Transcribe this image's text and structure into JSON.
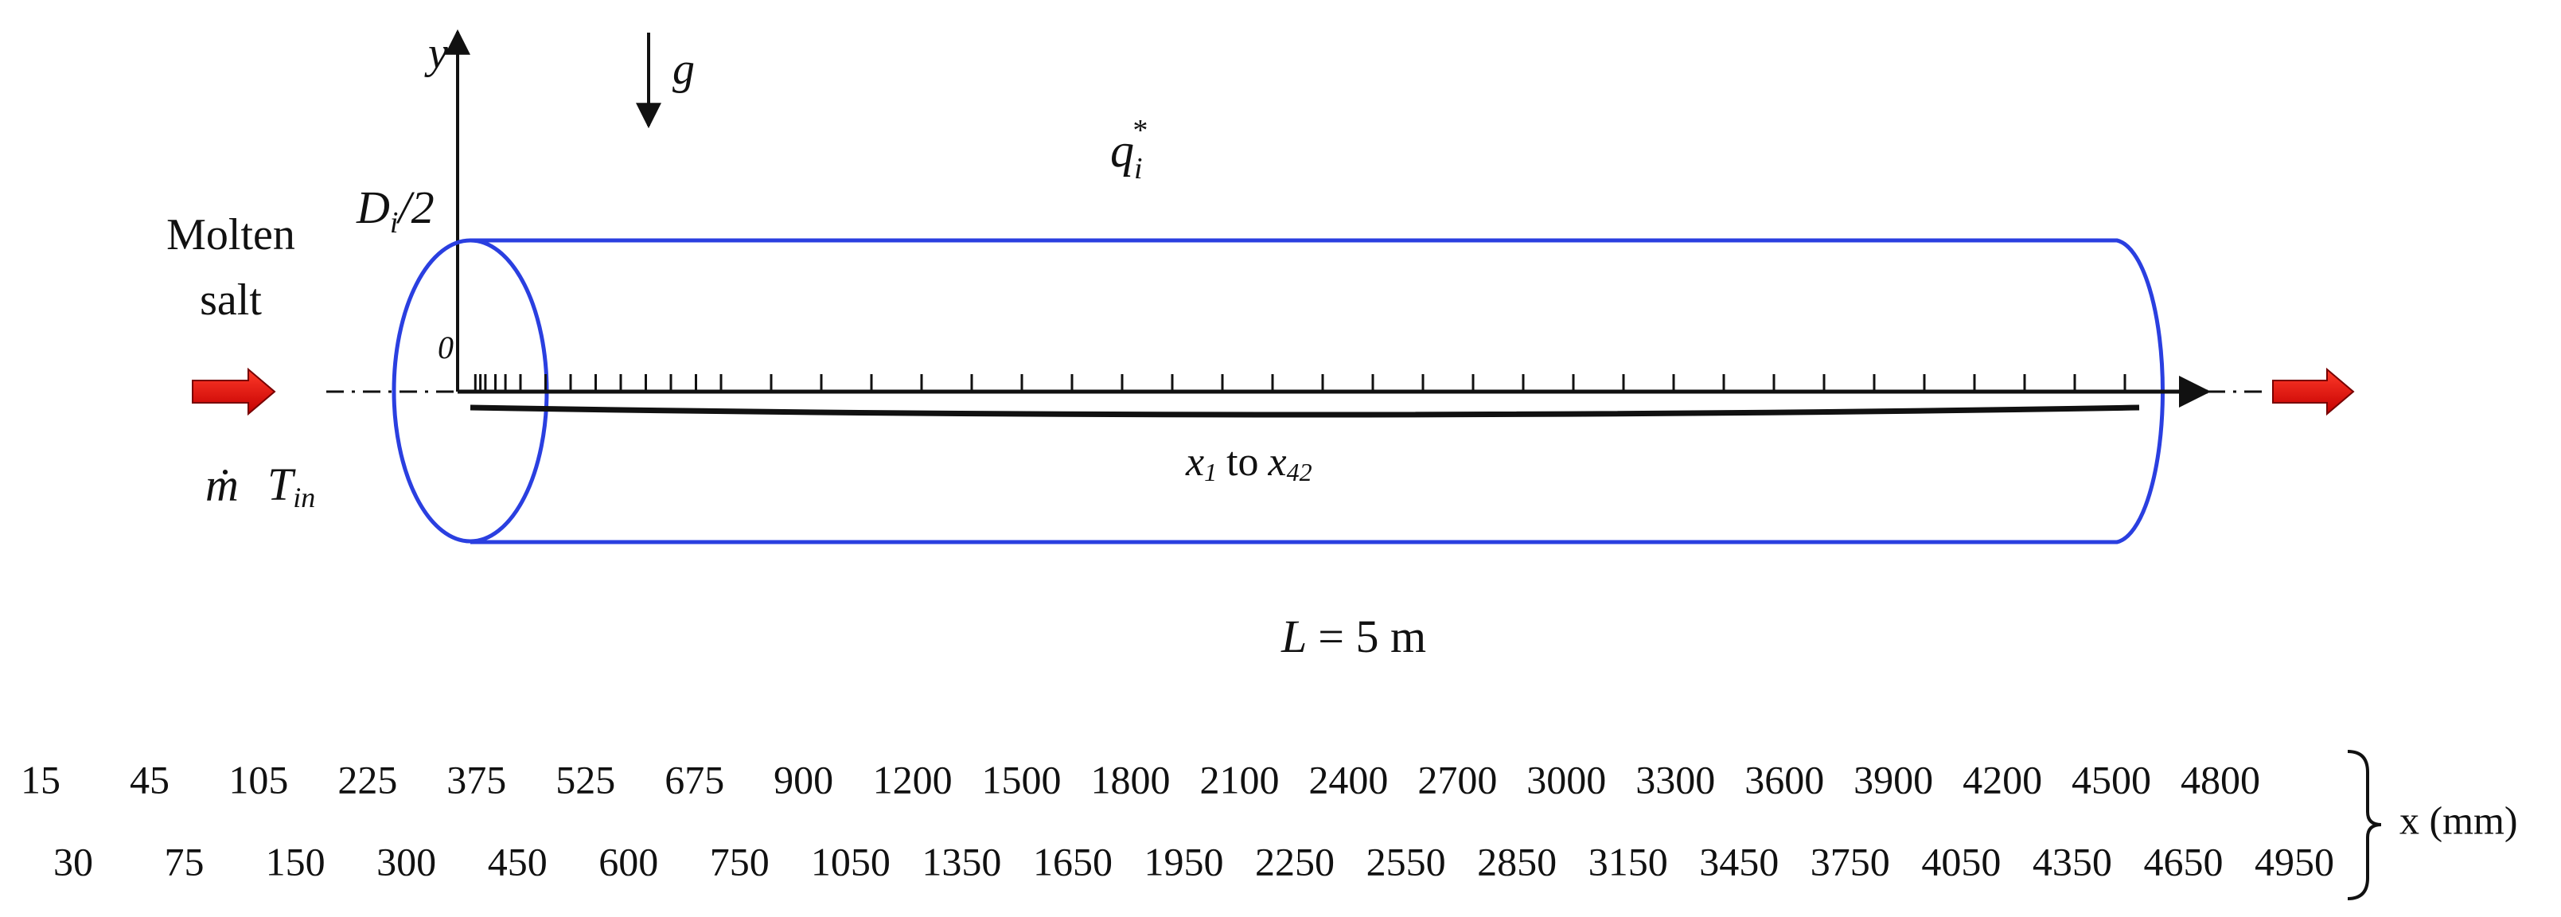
{
  "labels": {
    "y": "y",
    "g": "g",
    "q": {
      "main": "q",
      "sub": "i",
      "sup": "*"
    },
    "radius": {
      "main": "D",
      "sub": "i",
      "rest": "/2"
    },
    "inlet": [
      "Molten",
      "salt"
    ],
    "mass_flow": "ṁ",
    "inlet_temp": {
      "main": "T",
      "sub": "in"
    },
    "origin": "0",
    "probes": {
      "start": "x",
      "start_sub": "1",
      "to": "to",
      "end": "x",
      "end_sub": "42"
    },
    "length": {
      "symbol": "L",
      "rest": "= 5 m"
    }
  },
  "positions": {
    "row1": [
      15,
      45,
      105,
      225,
      375,
      525,
      675,
      900,
      1200,
      1500,
      1800,
      2100,
      2400,
      2700,
      3000,
      3300,
      3600,
      3900,
      4200,
      4500,
      4800
    ],
    "row2": [
      30,
      75,
      150,
      300,
      450,
      600,
      750,
      1050,
      1350,
      1650,
      1950,
      2250,
      2550,
      2850,
      3150,
      3450,
      3750,
      4050,
      4350,
      4650,
      4950
    ],
    "unit": "x (mm)"
  }
}
